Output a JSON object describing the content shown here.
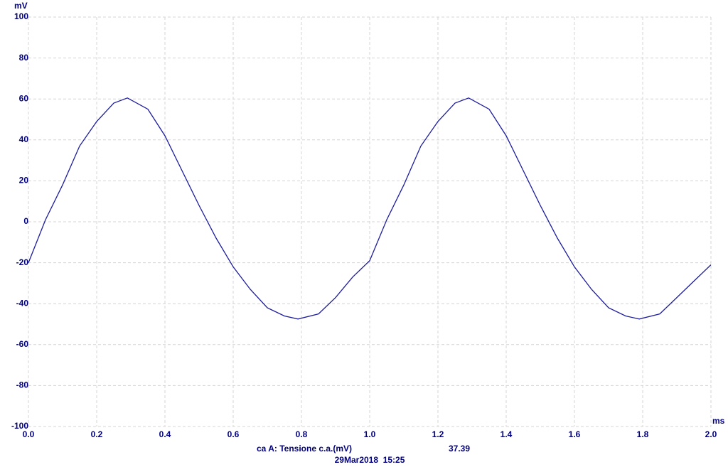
{
  "chart_data": {
    "type": "line",
    "y_label": "mV",
    "x_label": "ms",
    "x": [
      0,
      0.05,
      0.1,
      0.15,
      0.2,
      0.25,
      0.29,
      0.35,
      0.4,
      0.45,
      0.5,
      0.55,
      0.6,
      0.65,
      0.7,
      0.75,
      0.79,
      0.85,
      0.9,
      0.95,
      1.0,
      1.05,
      1.1,
      1.15,
      1.2,
      1.25,
      1.29,
      1.35,
      1.4,
      1.45,
      1.5,
      1.55,
      1.6,
      1.65,
      1.7,
      1.75,
      1.79,
      1.85,
      1.9,
      1.95,
      2.0
    ],
    "series": [
      {
        "name": "ca A: Tensione c.a.(mV)",
        "color": "#1c1c9c",
        "values": [
          -20,
          1,
          18,
          37,
          49,
          58,
          60.5,
          55,
          42,
          25,
          8,
          -8,
          -22,
          -33,
          -42,
          -46,
          -47.5,
          -45,
          -37,
          -27,
          -19,
          1,
          18,
          37,
          49,
          58,
          60.5,
          55,
          42,
          25,
          8,
          -8,
          -22,
          -33,
          -42,
          -46,
          -47.5,
          -45,
          -37,
          -29,
          -21
        ]
      }
    ],
    "reading": 37.39,
    "timestamp": "29Mar2018  15:25",
    "xlim": [
      0,
      2.0
    ],
    "xticks": [
      {
        "value": 0,
        "label": "0.0"
      },
      0.2,
      0.4,
      0.6,
      0.8,
      {
        "value": 1.0,
        "label": "1.0"
      },
      1.2,
      1.4,
      1.6,
      1.8,
      {
        "value": 2.0,
        "label": "2.0"
      }
    ],
    "ylim": [
      -100,
      100
    ],
    "yticks": [
      -100,
      -80,
      -60,
      -40,
      -20,
      0,
      20,
      40,
      60,
      80,
      100
    ],
    "grid": true
  }
}
